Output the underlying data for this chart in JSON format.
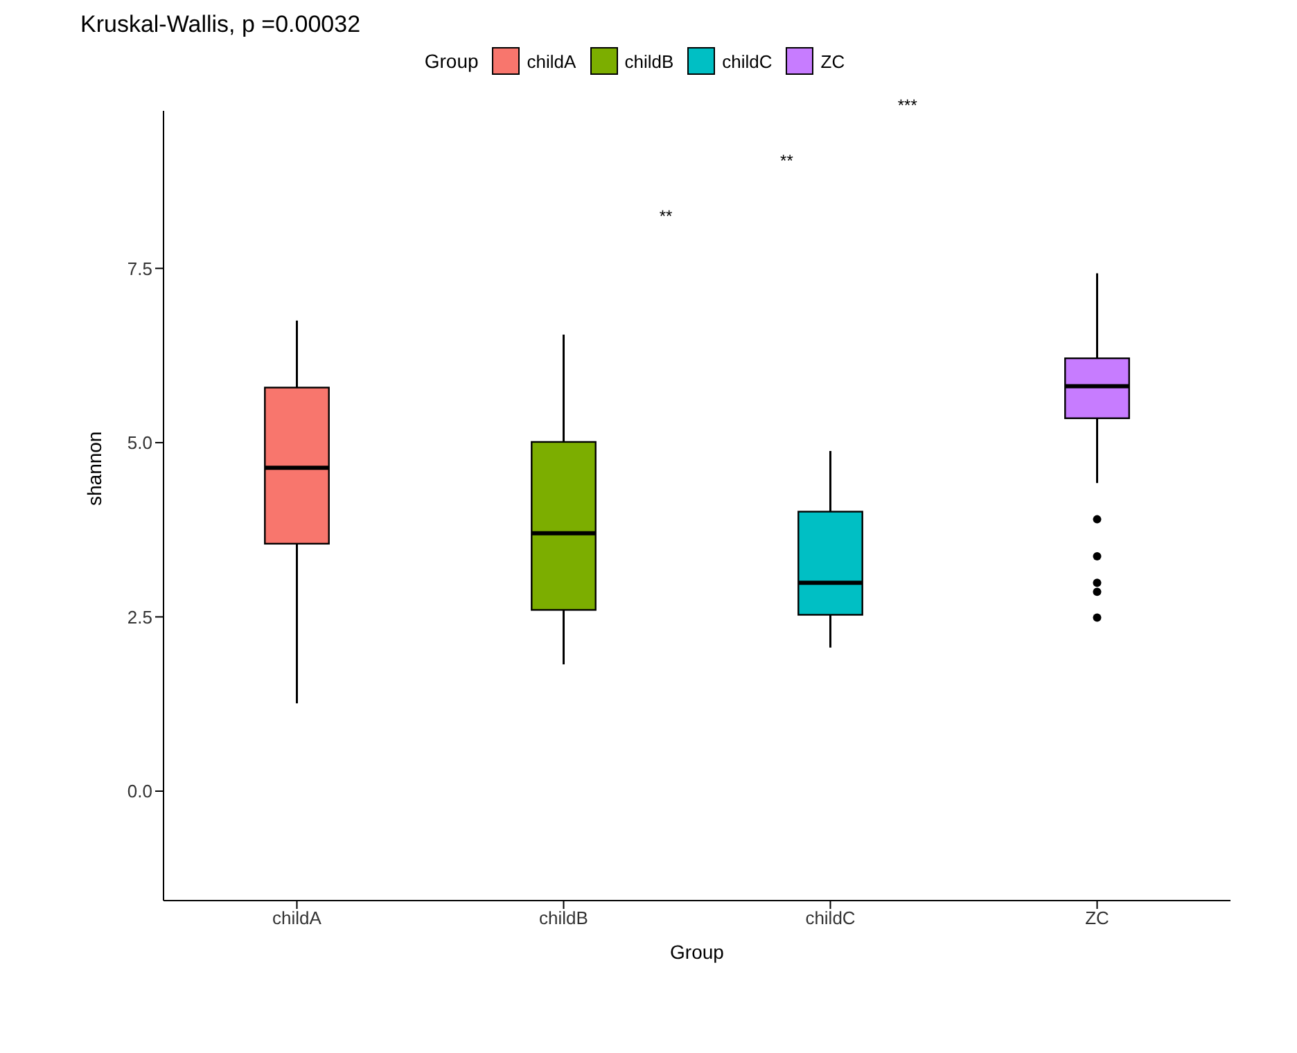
{
  "chart_data": {
    "type": "box",
    "title": "Kruskal-Wallis, p =0.00032",
    "xlabel": "Group",
    "ylabel": "shannon",
    "legend_title": "Group",
    "legend": "top",
    "grid": false,
    "categories": [
      "childA",
      "childB",
      "childC",
      "ZC"
    ],
    "series": [
      {
        "name": "childA",
        "color": "#f8766d",
        "boxes": [
          {
            "low": 1.26,
            "q1": 3.55,
            "median": 4.64,
            "q3": 5.79,
            "high": 6.75
          },
          null,
          null,
          null
        ]
      },
      {
        "name": "childB",
        "color": "#7cae00",
        "boxes": [
          null,
          {
            "low": 1.82,
            "q1": 2.6,
            "median": 3.7,
            "q3": 5.01,
            "high": 6.55
          },
          null,
          null
        ]
      },
      {
        "name": "childC",
        "color": "#00bfc4",
        "boxes": [
          null,
          null,
          {
            "low": 2.06,
            "q1": 2.53,
            "median": 2.99,
            "q3": 4.01,
            "high": 4.88
          },
          null
        ]
      },
      {
        "name": "ZC",
        "color": "#c77cff",
        "boxes": [
          null,
          null,
          null,
          {
            "low": 4.42,
            "q1": 5.35,
            "median": 5.81,
            "q3": 6.21,
            "high": 7.43,
            "outliers": [
              3.9,
              3.37,
              2.99,
              2.86,
              2.49
            ]
          }
        ]
      }
    ],
    "ylim": [
      -1.57,
      9.76
    ],
    "yticks": [
      {
        "value": 0,
        "label": "0.0"
      },
      {
        "value": 2.5,
        "label": "2.5"
      },
      {
        "value": 5,
        "label": "5.0"
      },
      {
        "value": 7.5,
        "label": "7.5"
      }
    ],
    "annotations": [
      "**",
      "**",
      "***"
    ]
  }
}
